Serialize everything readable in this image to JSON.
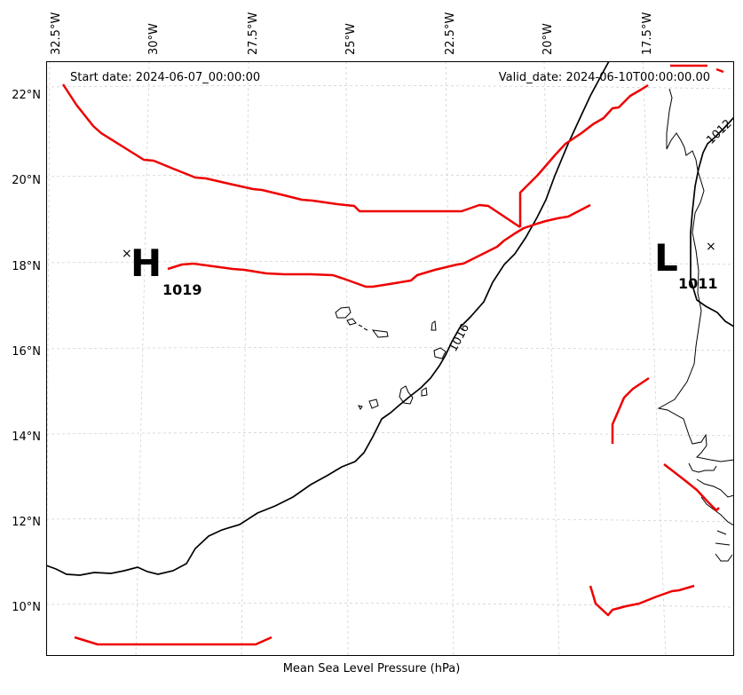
{
  "header": {
    "start_date": "Start date: 2024-06-07_00:00:00",
    "valid_date": "Valid_date: 2024-06-10T00:00:00.00"
  },
  "footer": {
    "label": "Mean Sea Level Pressure (hPa)"
  },
  "axes": {
    "lon_labels": [
      "32.5°W",
      "30°W",
      "27.5°W",
      "25°W",
      "22.5°W",
      "20°W",
      "17.5°W"
    ],
    "lat_labels": [
      "22°N",
      "20°N",
      "18°N",
      "16°N",
      "14°N",
      "12°N",
      "10°N"
    ],
    "grid": true
  },
  "pressure_centers": [
    {
      "type": "high",
      "letter": "H",
      "value": "1019",
      "marker": "×"
    },
    {
      "type": "low",
      "letter": "L",
      "value": "1011",
      "marker": "×"
    }
  ],
  "isobars": [
    {
      "label": "1016"
    },
    {
      "label": "1012"
    }
  ],
  "colors": {
    "front": "#ee0000",
    "isobar": "#000000",
    "coastline": "#000000",
    "grid": "#cccccc"
  }
}
